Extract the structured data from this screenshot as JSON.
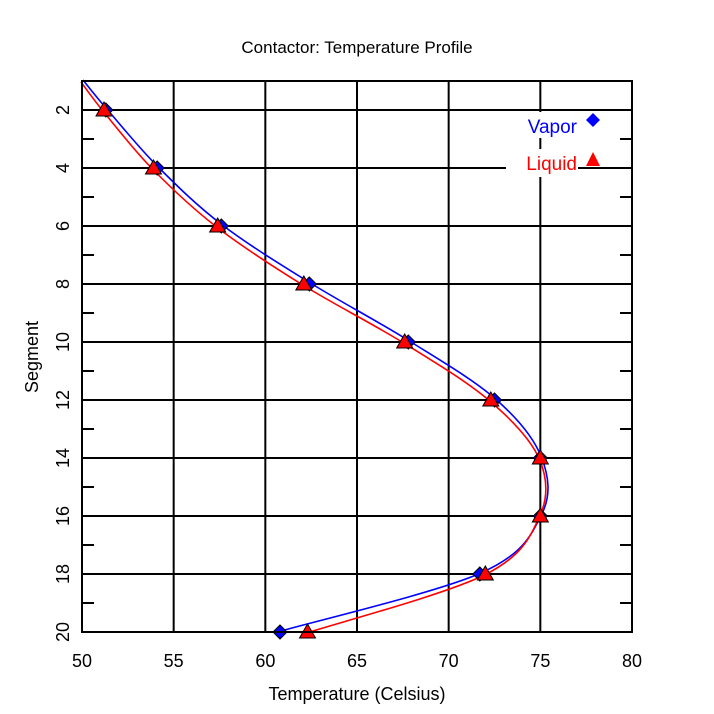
{
  "chart_data": {
    "type": "line",
    "title": "Contactor: Temperature Profile",
    "xlabel": "Temperature (Celsius)",
    "ylabel": "Segment",
    "xlim": [
      50,
      80
    ],
    "ylim": [
      20,
      1
    ],
    "y_inverted": true,
    "grid": true,
    "x_ticks": [
      "50",
      "55",
      "60",
      "65",
      "70",
      "75",
      "80"
    ],
    "x_tick_values": [
      50,
      55,
      60,
      65,
      70,
      75,
      80
    ],
    "y_ticks": [
      "2",
      "4",
      "6",
      "8",
      "10",
      "12",
      "14",
      "16",
      "18",
      "20"
    ],
    "y_tick_values": [
      2,
      4,
      6,
      8,
      10,
      12,
      14,
      16,
      18,
      20
    ],
    "legend_position": "top-right",
    "series": [
      {
        "name": "Vapor",
        "color": "#0000ff",
        "marker": "diamond",
        "segments": [
          2,
          4,
          6,
          8,
          10,
          12,
          14,
          16,
          18,
          20
        ],
        "values": [
          51.3,
          54.1,
          57.6,
          62.4,
          67.8,
          72.5,
          75.0,
          75.0,
          71.7,
          60.8
        ],
        "curve_start": [
          50.0,
          1
        ]
      },
      {
        "name": "Liquid",
        "color": "#ff0000",
        "marker": "triangle",
        "segments": [
          2,
          4,
          6,
          8,
          10,
          12,
          14,
          16,
          18,
          20
        ],
        "values": [
          51.2,
          53.9,
          57.4,
          62.1,
          67.6,
          72.3,
          75.0,
          75.0,
          72.0,
          62.3
        ],
        "curve_start": [
          50.0,
          1
        ]
      }
    ]
  }
}
